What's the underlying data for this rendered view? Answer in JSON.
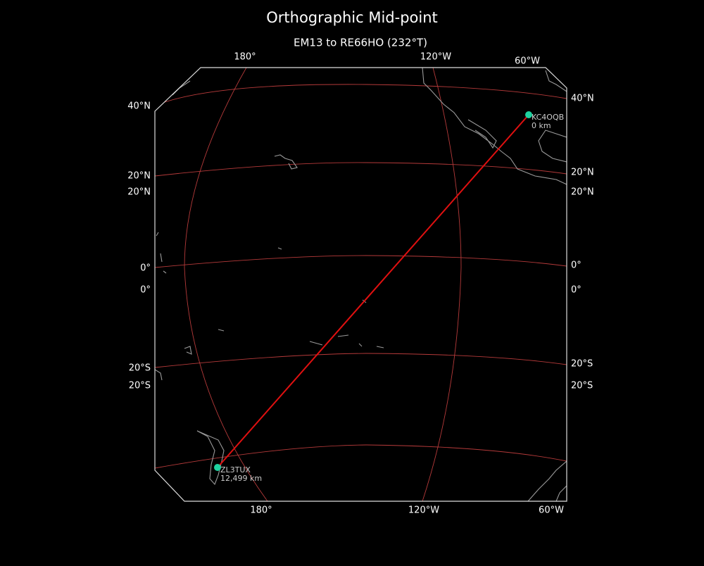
{
  "title": "Orthographic Mid-point",
  "subtitle": "EM13 to RE66HO (232°T)",
  "top_labels": [
    "180°",
    "120°W",
    "60°W"
  ],
  "bottom_labels": [
    "180°",
    "120°W",
    "60°W"
  ],
  "left_labels": [
    "40°N",
    "20°N",
    "20°N",
    "0°",
    "0°",
    "20°S",
    "20°S"
  ],
  "right_labels": [
    "40°N",
    "20°N",
    "20°N",
    "0°",
    "0°",
    "20°S",
    "20°S"
  ],
  "stations": [
    {
      "call": "KC4OQB",
      "distance": "0 km"
    },
    {
      "call": "ZL3TUX",
      "distance": "12,499 km"
    }
  ]
}
